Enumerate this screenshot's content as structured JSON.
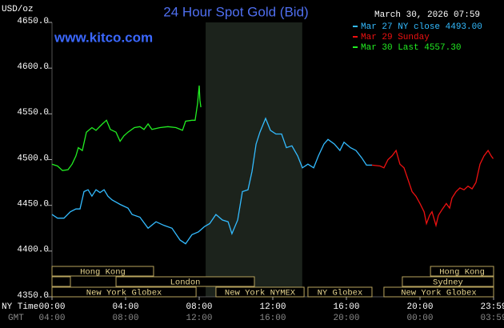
{
  "chart_data": {
    "type": "line",
    "title": "24 Hour Spot Gold (Bid)",
    "timestamp": "March 30, 2026 07:59",
    "website": "www.kitco.com",
    "y_label": "USD/oz",
    "x_row_labels": [
      "NY Time",
      "GMT"
    ],
    "xlim": [
      0,
      24
    ],
    "ylim": [
      4350,
      4650
    ],
    "yticks": [
      {
        "value": 4650,
        "label": "4650.0"
      },
      {
        "value": 4600,
        "label": "4600.0"
      },
      {
        "value": 4550,
        "label": "4550.0"
      },
      {
        "value": 4500,
        "label": "4500.0"
      },
      {
        "value": 4450,
        "label": "4450.0"
      },
      {
        "value": 4400,
        "label": "4400.0"
      },
      {
        "value": 4350,
        "label": "4350.0"
      }
    ],
    "xticks": [
      {
        "value": 0,
        "label": "00:00"
      },
      {
        "value": 4,
        "label": "04:00"
      },
      {
        "value": 8,
        "label": "08:00"
      },
      {
        "value": 12,
        "label": "12:00"
      },
      {
        "value": 16,
        "label": "16:00"
      },
      {
        "value": 20,
        "label": "20:00"
      },
      {
        "value": 24,
        "label": "23:59"
      }
    ],
    "gmt_ticks": [
      {
        "value": 0,
        "label": "04:00"
      },
      {
        "value": 4,
        "label": "08:00"
      },
      {
        "value": 8,
        "label": "12:00"
      },
      {
        "value": 12,
        "label": "16:00"
      },
      {
        "value": 16,
        "label": "20:00"
      },
      {
        "value": 20,
        "label": "00:00"
      },
      {
        "value": 24,
        "label": "03:59"
      }
    ],
    "shaded": [
      8.35,
      13.6
    ],
    "session_rows": [
      [
        {
          "label": "Hong Kong",
          "start": 0,
          "end": 5.52
        },
        {
          "label": "Hong Kong",
          "start": 20.57,
          "end": 24
        }
      ],
      [
        {
          "label": null,
          "start": 0,
          "end": 1
        },
        {
          "label": "London",
          "start": 3.48,
          "end": 11
        },
        {
          "label": "Sydney",
          "start": 19.04,
          "end": 24
        }
      ],
      [
        {
          "label": "New York Globex",
          "start": 0,
          "end": 7.83
        },
        {
          "label": "New York NYMEX",
          "start": 8.91,
          "end": 13.7
        },
        {
          "label": "NY Globex",
          "start": 13.91,
          "end": 17.39
        },
        {
          "label": "New York Globex",
          "start": 18.04,
          "end": 24
        }
      ]
    ],
    "series": [
      {
        "name": "Mar 27 NY close 4493.00",
        "color": "#33bbff",
        "x": [
          0,
          0.3,
          0.65,
          1.0,
          1.3,
          1.52,
          1.74,
          1.96,
          2.17,
          2.39,
          2.61,
          2.83,
          3.04,
          3.26,
          3.7,
          4.13,
          4.35,
          4.78,
          5.22,
          5.65,
          6.09,
          6.52,
          6.96,
          7.26,
          7.61,
          7.96,
          8.3,
          8.57,
          8.91,
          9.26,
          9.57,
          9.78,
          10.09,
          10.35,
          10.65,
          10.87,
          11.09,
          11.3,
          11.61,
          11.87,
          12.17,
          12.48,
          12.74,
          13.04,
          13.35,
          13.61,
          13.91,
          14.22,
          14.48,
          14.78,
          15.0,
          15.35,
          15.65,
          15.87,
          16.22,
          16.52,
          16.83,
          17.09,
          17.39
        ],
        "values": [
          4440,
          4436,
          4436,
          4443,
          4446,
          4446,
          4465,
          4467,
          4460,
          4467,
          4464,
          4467,
          4460,
          4456,
          4451,
          4447,
          4440,
          4437,
          4425,
          4432,
          4428,
          4425,
          4412,
          4408,
          4418,
          4421,
          4427,
          4430,
          4440,
          4434,
          4432,
          4419,
          4434,
          4465,
          4467,
          4487,
          4517,
          4530,
          4545,
          4532,
          4528,
          4528,
          4513,
          4515,
          4504,
          4491,
          4495,
          4491,
          4504,
          4517,
          4522,
          4517,
          4510,
          4519,
          4513,
          4510,
          4502,
          4494,
          4494
        ]
      },
      {
        "name": "Mar 29 Sunday",
        "color": "#ee1111",
        "x": [
          17.39,
          17.83,
          18.04,
          18.26,
          18.48,
          18.7,
          18.91,
          19.13,
          19.35,
          19.57,
          19.78,
          20.0,
          20.22,
          20.35,
          20.52,
          20.65,
          20.87,
          21.0,
          21.22,
          21.43,
          21.61,
          21.74,
          21.96,
          22.17,
          22.39,
          22.61,
          22.83,
          23.04,
          23.26,
          23.48,
          23.7,
          23.87,
          23.98
        ],
        "values": [
          4494,
          4493,
          4491,
          4500,
          4504,
          4510,
          4495,
          4491,
          4478,
          4465,
          4460,
          4452,
          4443,
          4430,
          4439,
          4443,
          4428,
          4439,
          4446,
          4452,
          4447,
          4458,
          4465,
          4469,
          4467,
          4471,
          4468,
          4475,
          4495,
          4504,
          4510,
          4504,
          4501
        ]
      },
      {
        "name": "Mar 30 Last 4557.30",
        "color": "#22ee22",
        "x": [
          0,
          0.3,
          0.57,
          0.87,
          1.09,
          1.3,
          1.43,
          1.65,
          1.87,
          2.17,
          2.39,
          2.74,
          2.96,
          3.17,
          3.48,
          3.7,
          3.91,
          4.13,
          4.48,
          4.78,
          5.0,
          5.22,
          5.43,
          5.87,
          6.3,
          6.74,
          7.09,
          7.26,
          7.61,
          7.78,
          7.91,
          8.0,
          8.04,
          8.09
        ],
        "values": [
          4495,
          4493,
          4488,
          4489,
          4495,
          4504,
          4513,
          4510,
          4530,
          4535,
          4532,
          4539,
          4543,
          4533,
          4530,
          4520,
          4526,
          4530,
          4535,
          4536,
          4533,
          4539,
          4533,
          4535,
          4536,
          4535,
          4532,
          4542,
          4543,
          4543,
          4561,
          4581,
          4565,
          4557.3
        ]
      }
    ]
  }
}
